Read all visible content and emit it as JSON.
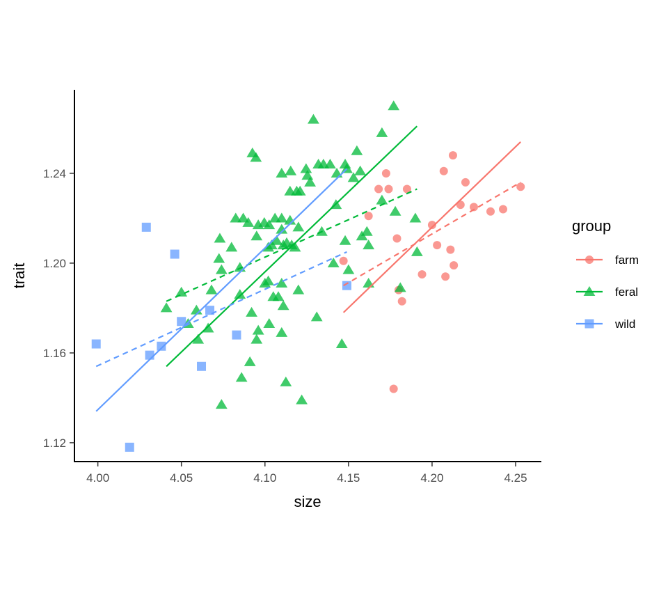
{
  "chart_data": {
    "type": "scatter",
    "title": "",
    "xlabel": "size",
    "ylabel": "trait",
    "xlim": [
      3.986,
      4.2654
    ],
    "ylim": [
      1.1116,
      1.2772
    ],
    "xticks": [
      4.0,
      4.05,
      4.1,
      4.15,
      4.2,
      4.25
    ],
    "xtick_labels": [
      "4.00",
      "4.05",
      "4.10",
      "4.15",
      "4.20",
      "4.25"
    ],
    "yticks": [
      1.12,
      1.16,
      1.2,
      1.24
    ],
    "ytick_labels": [
      "1.12",
      "1.16",
      "1.20",
      "1.24"
    ],
    "grid": false,
    "legend": {
      "title": "group",
      "placement": "right"
    },
    "series": [
      {
        "name": "farm",
        "color": "#F8766D",
        "marker": "circle",
        "points": [
          [
            4.147,
            1.201
          ],
          [
            4.162,
            1.221
          ],
          [
            4.1725,
            1.24
          ],
          [
            4.168,
            1.233
          ],
          [
            4.174,
            1.233
          ],
          [
            4.185,
            1.233
          ],
          [
            4.179,
            1.211
          ],
          [
            4.18,
            1.188
          ],
          [
            4.182,
            1.183
          ],
          [
            4.177,
            1.144
          ],
          [
            4.194,
            1.195
          ],
          [
            4.2,
            1.217
          ],
          [
            4.203,
            1.208
          ],
          [
            4.207,
            1.241
          ],
          [
            4.211,
            1.206
          ],
          [
            4.2125,
            1.248
          ],
          [
            4.213,
            1.199
          ],
          [
            4.208,
            1.194
          ],
          [
            4.217,
            1.226
          ],
          [
            4.22,
            1.236
          ],
          [
            4.225,
            1.225
          ],
          [
            4.235,
            1.223
          ],
          [
            4.2425,
            1.224
          ],
          [
            4.253,
            1.234
          ]
        ],
        "fit_solid": [
          [
            4.147,
            1.178
          ],
          [
            4.253,
            1.254
          ]
        ],
        "fit_dashed": [
          [
            4.147,
            1.19
          ],
          [
            4.253,
            1.236
          ]
        ]
      },
      {
        "name": "feral",
        "color": "#00BA38",
        "marker": "triangle",
        "points": [
          [
            4.129,
            1.264
          ],
          [
            4.177,
            1.27
          ],
          [
            4.17,
            1.258
          ],
          [
            4.155,
            1.25
          ],
          [
            4.0925,
            1.249
          ],
          [
            4.0946,
            1.247
          ],
          [
            4.11,
            1.24
          ],
          [
            4.1154,
            1.241
          ],
          [
            4.1246,
            1.242
          ],
          [
            4.1254,
            1.239
          ],
          [
            4.132,
            1.244
          ],
          [
            4.135,
            1.244
          ],
          [
            4.139,
            1.244
          ],
          [
            4.148,
            1.244
          ],
          [
            4.149,
            1.242
          ],
          [
            4.153,
            1.238
          ],
          [
            4.157,
            1.241
          ],
          [
            4.143,
            1.24
          ],
          [
            4.115,
            1.232
          ],
          [
            4.119,
            1.232
          ],
          [
            4.121,
            1.232
          ],
          [
            4.127,
            1.236
          ],
          [
            4.1425,
            1.226
          ],
          [
            4.161,
            1.214
          ],
          [
            4.162,
            1.208
          ],
          [
            4.17,
            1.228
          ],
          [
            4.178,
            1.223
          ],
          [
            4.19,
            1.22
          ],
          [
            4.191,
            1.205
          ],
          [
            4.0825,
            1.22
          ],
          [
            4.087,
            1.22
          ],
          [
            4.09,
            1.218
          ],
          [
            4.095,
            1.212
          ],
          [
            4.096,
            1.217
          ],
          [
            4.0996,
            1.218
          ],
          [
            4.1025,
            1.217
          ],
          [
            4.106,
            1.22
          ],
          [
            4.11,
            1.22
          ],
          [
            4.115,
            1.219
          ],
          [
            4.12,
            1.216
          ],
          [
            4.11,
            1.215
          ],
          [
            4.107,
            1.21
          ],
          [
            4.104,
            1.208
          ],
          [
            4.102,
            1.207
          ],
          [
            4.111,
            1.208
          ],
          [
            4.113,
            1.209
          ],
          [
            4.116,
            1.208
          ],
          [
            4.118,
            1.207
          ],
          [
            4.134,
            1.214
          ],
          [
            4.141,
            1.2
          ],
          [
            4.148,
            1.21
          ],
          [
            4.15,
            1.197
          ],
          [
            4.162,
            1.191
          ],
          [
            4.073,
            1.211
          ],
          [
            4.0725,
            1.202
          ],
          [
            4.074,
            1.197
          ],
          [
            4.08,
            1.207
          ],
          [
            4.085,
            1.198
          ],
          [
            4.05,
            1.187
          ],
          [
            4.041,
            1.18
          ],
          [
            4.068,
            1.188
          ],
          [
            4.059,
            1.179
          ],
          [
            4.066,
            1.171
          ],
          [
            4.054,
            1.173
          ],
          [
            4.06,
            1.166
          ],
          [
            4.085,
            1.186
          ],
          [
            4.092,
            1.178
          ],
          [
            4.095,
            1.166
          ],
          [
            4.105,
            1.185
          ],
          [
            4.11,
            1.191
          ],
          [
            4.1,
            1.191
          ],
          [
            4.096,
            1.17
          ],
          [
            4.1025,
            1.173
          ],
          [
            4.108,
            1.185
          ],
          [
            4.111,
            1.181
          ],
          [
            4.11,
            1.169
          ],
          [
            4.12,
            1.188
          ],
          [
            4.091,
            1.156
          ],
          [
            4.086,
            1.149
          ],
          [
            4.074,
            1.137
          ],
          [
            4.1125,
            1.147
          ],
          [
            4.122,
            1.139
          ],
          [
            4.146,
            1.164
          ],
          [
            4.131,
            1.176
          ],
          [
            4.181,
            1.189
          ],
          [
            4.158,
            1.212
          ],
          [
            4.102,
            1.192
          ]
        ],
        "fit_solid": [
          [
            4.041,
            1.154
          ],
          [
            4.191,
            1.261
          ]
        ],
        "fit_dashed": [
          [
            4.041,
            1.183
          ],
          [
            4.191,
            1.233
          ]
        ]
      },
      {
        "name": "wild",
        "color": "#619CFF",
        "marker": "square",
        "points": [
          [
            3.999,
            1.164
          ],
          [
            4.029,
            1.216
          ],
          [
            4.046,
            1.204
          ],
          [
            4.019,
            1.118
          ],
          [
            4.031,
            1.159
          ],
          [
            4.038,
            1.163
          ],
          [
            4.05,
            1.174
          ],
          [
            4.062,
            1.154
          ],
          [
            4.067,
            1.179
          ],
          [
            4.083,
            1.168
          ],
          [
            4.149,
            1.19
          ]
        ],
        "fit_solid": [
          [
            3.999,
            1.134
          ],
          [
            4.149,
            1.242
          ]
        ],
        "fit_dashed": [
          [
            3.999,
            1.154
          ],
          [
            4.149,
            1.205
          ]
        ]
      }
    ]
  }
}
